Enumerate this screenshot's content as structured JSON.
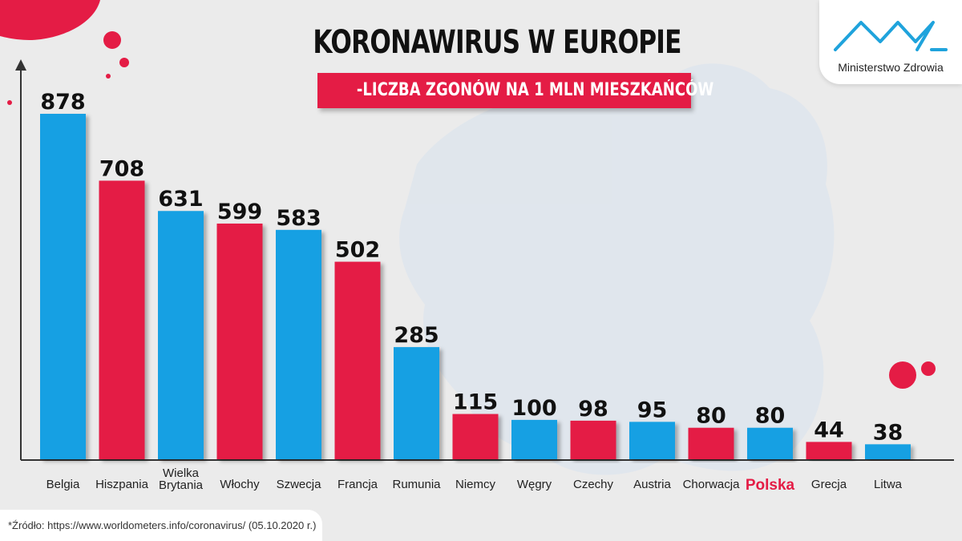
{
  "title": "KORONAWIRUS W EUROPIE",
  "subtitle": "-LICZBA ZGONÓW NA 1 MLN MIESZKAŃCÓW",
  "logo_text": "Ministerstwo Zdrowia",
  "source": "*Źródło: https://www.worldometers.info/coronavirus/ (05.10.2020 r.)",
  "colors": {
    "blue": "#13a0e3",
    "red": "#e41c45",
    "highlight_label": "#e41c45",
    "axis": "#333333"
  },
  "highlight": "Polska",
  "chart_data": {
    "type": "bar",
    "title": "KORONAWIRUS W EUROPIE",
    "subtitle": "-LICZBA ZGONÓW NA 1 MLN MIESZKAŃCÓW",
    "xlabel": "",
    "ylabel": "",
    "ylim": [
      0,
      950
    ],
    "grid": false,
    "categories": [
      "Belgia",
      "Hiszpania",
      "Wielka Brytania",
      "Włochy",
      "Szwecja",
      "Francja",
      "Rumunia",
      "Niemcy",
      "Węgry",
      "Czechy",
      "Austria",
      "Chorwacja",
      "Polska",
      "Grecja",
      "Litwa"
    ],
    "values": [
      878,
      708,
      631,
      599,
      583,
      502,
      285,
      115,
      100,
      98,
      95,
      80,
      80,
      44,
      38
    ],
    "bar_colors": [
      "blue",
      "red",
      "blue",
      "red",
      "blue",
      "red",
      "blue",
      "red",
      "blue",
      "red",
      "blue",
      "red",
      "blue",
      "red",
      "blue"
    ]
  }
}
